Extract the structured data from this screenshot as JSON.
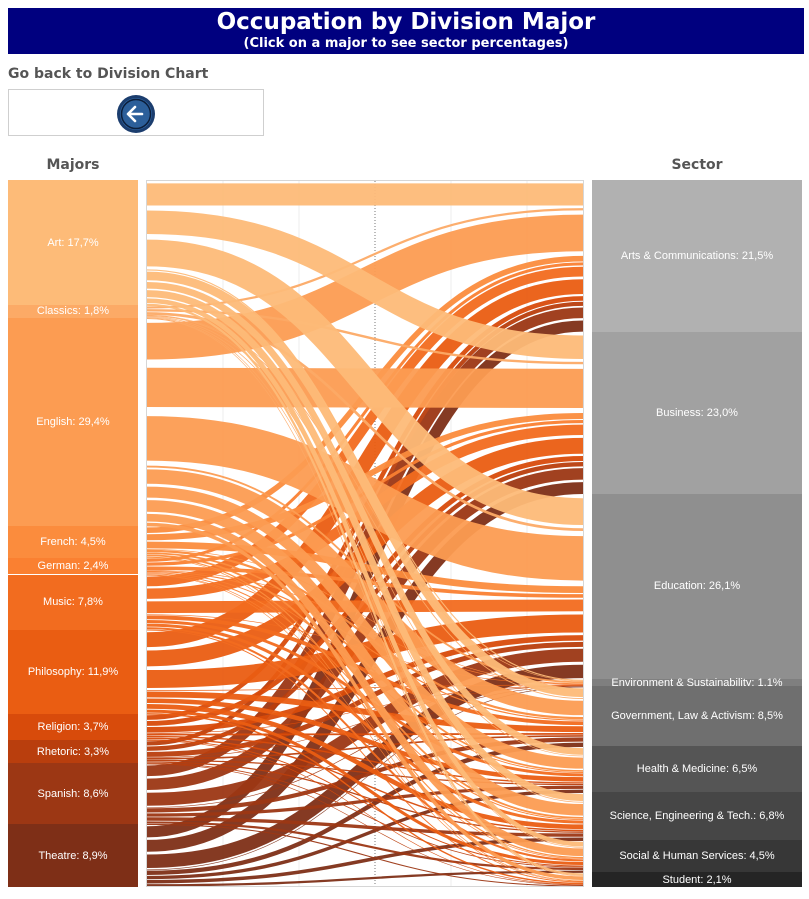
{
  "header": {
    "title": "Occupation by Division Major",
    "subtitle": "(Click on a major to see sector percentages)"
  },
  "back": {
    "label": "Go back to Division Chart",
    "icon": "arrow-left-icon"
  },
  "majors_heading": "Majors",
  "sector_heading": "Sector",
  "chart_data": {
    "type": "sankey",
    "title": "Occupation by Division Major",
    "majors": [
      {
        "name": "Art",
        "pct": 17.7,
        "label": "Art: 17,7%",
        "color": "#fdbb78"
      },
      {
        "name": "Classics",
        "pct": 1.8,
        "label": "Classics: 1,8%",
        "color": "#fcaa66"
      },
      {
        "name": "English",
        "pct": 29.4,
        "label": "English: 29,4%",
        "color": "#fc9c52"
      },
      {
        "name": "French",
        "pct": 4.5,
        "label": "French: 4,5%",
        "color": "#fb8c3d"
      },
      {
        "name": "German",
        "pct": 2.4,
        "label": "German: 2,4%",
        "color": "#fa8031"
      },
      {
        "name": "Music",
        "pct": 7.8,
        "label": "Music: 7,8%",
        "color": "#f26c1f"
      },
      {
        "name": "Philosophy",
        "pct": 11.9,
        "label": "Philosophy: 11,9%",
        "color": "#ea5d12"
      },
      {
        "name": "Religion",
        "pct": 3.7,
        "label": "Religion: 3,7%",
        "color": "#d84b0b"
      },
      {
        "name": "Rhetoric",
        "pct": 3.3,
        "label": "Rhetoric: 3,3%",
        "color": "#b93e0d"
      },
      {
        "name": "Spanish",
        "pct": 8.6,
        "label": "Spanish: 8,6%",
        "color": "#9c3714"
      },
      {
        "name": "Theatre",
        "pct": 8.9,
        "label": "Theatre: 8,9%",
        "color": "#7e2f17"
      }
    ],
    "sectors": [
      {
        "name": "Arts & Communications",
        "pct": 21.5,
        "label": "Arts & Communications: 21,5%",
        "color": "#b1b1b1"
      },
      {
        "name": "Business",
        "pct": 23.0,
        "label": "Business: 23,0%",
        "color": "#a1a1a1"
      },
      {
        "name": "Education",
        "pct": 26.1,
        "label": "Education: 26,1%",
        "color": "#8f8f8f"
      },
      {
        "name": "Environment & Sustainability",
        "pct": 1.1,
        "label": "Environment & Sustainability: 1,1%",
        "color": "#7f7f7f"
      },
      {
        "name": "Government, Law & Activism",
        "pct": 8.5,
        "label": "Government, Law & Activism: 8,5%",
        "color": "#6f6f6f"
      },
      {
        "name": "Health & Medicine",
        "pct": 6.5,
        "label": "Health & Medicine: 6,5%",
        "color": "#555555"
      },
      {
        "name": "Science, Engineering & Tech.",
        "pct": 6.8,
        "label": "Science, Engineering & Tech.: 6,8%",
        "color": "#464646"
      },
      {
        "name": "Social & Human Services",
        "pct": 4.5,
        "label": "Social & Human Services: 4,5%",
        "color": "#373737"
      },
      {
        "name": "Student",
        "pct": 2.1,
        "label": "Student: 2,1%",
        "color": "#252525"
      }
    ]
  }
}
